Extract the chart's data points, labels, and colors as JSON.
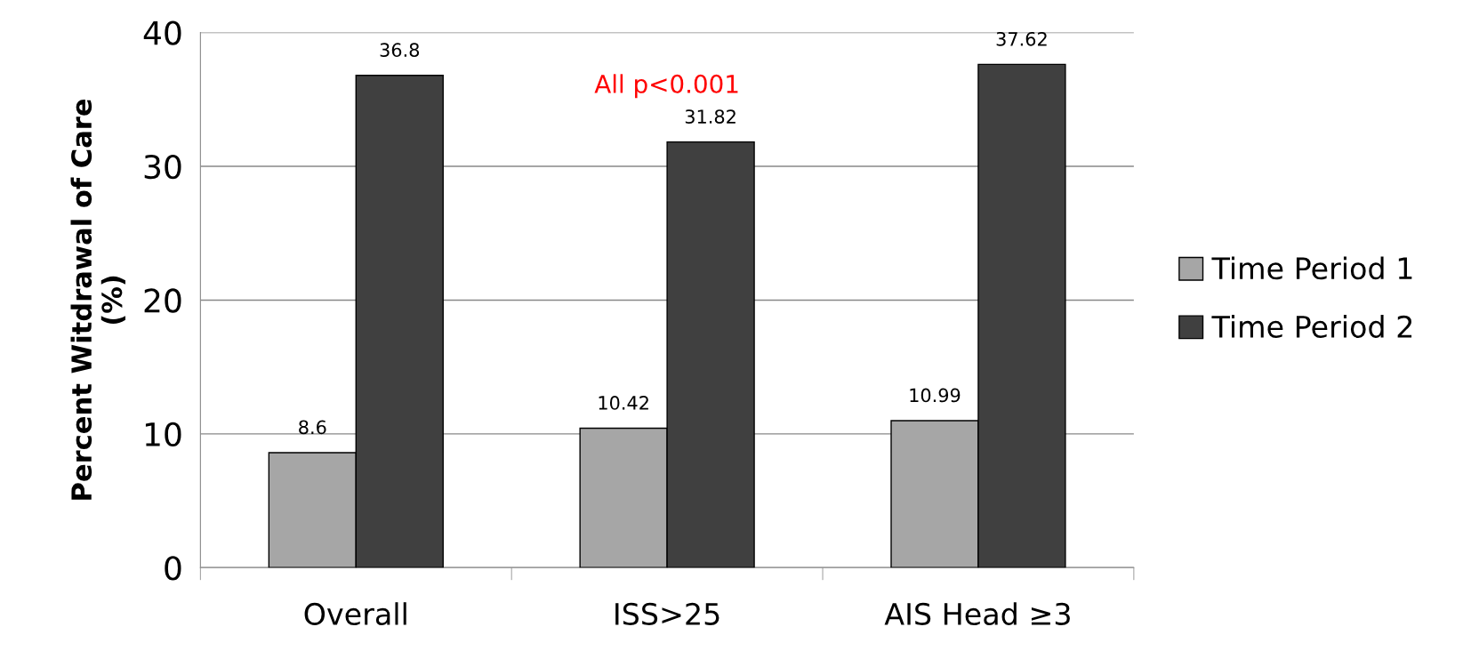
{
  "chart_data": {
    "type": "bar",
    "ylabel": "Percent Witdrawal of Care\n(%)",
    "categories": [
      "Overall",
      "ISS>25",
      "AIS Head ≥3"
    ],
    "series": [
      {
        "name": "Time Period 1",
        "color": "#a6a6a6",
        "values": [
          8.6,
          10.42,
          10.99
        ]
      },
      {
        "name": "Time Period 2",
        "color": "#404040",
        "values": [
          36.8,
          31.82,
          37.62
        ]
      }
    ],
    "ylim": [
      0,
      40
    ],
    "yticks": [
      0,
      10,
      20,
      30,
      40
    ],
    "grid": "y",
    "legend": "right",
    "data_labels": true,
    "annotations": [
      "All p<0.001"
    ]
  }
}
